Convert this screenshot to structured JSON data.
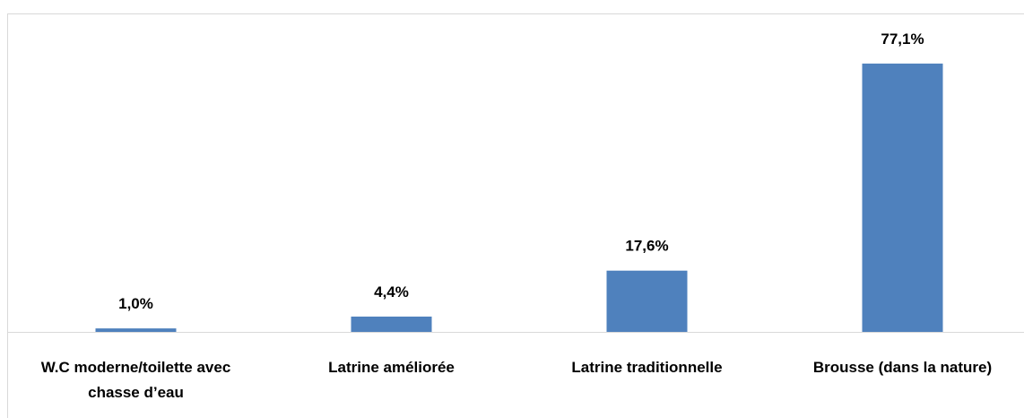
{
  "chart_data": {
    "type": "bar",
    "categories": [
      "W.C moderne/toilette avec chasse d’eau",
      "Latrine améliorée",
      "Latrine traditionnelle",
      "Brousse (dans la nature)"
    ],
    "values": [
      1.0,
      4.4,
      17.6,
      77.1
    ],
    "value_labels": [
      "1,0%",
      "4,4%",
      "17,6%",
      "77,1%"
    ],
    "color": "#4f81bd"
  }
}
